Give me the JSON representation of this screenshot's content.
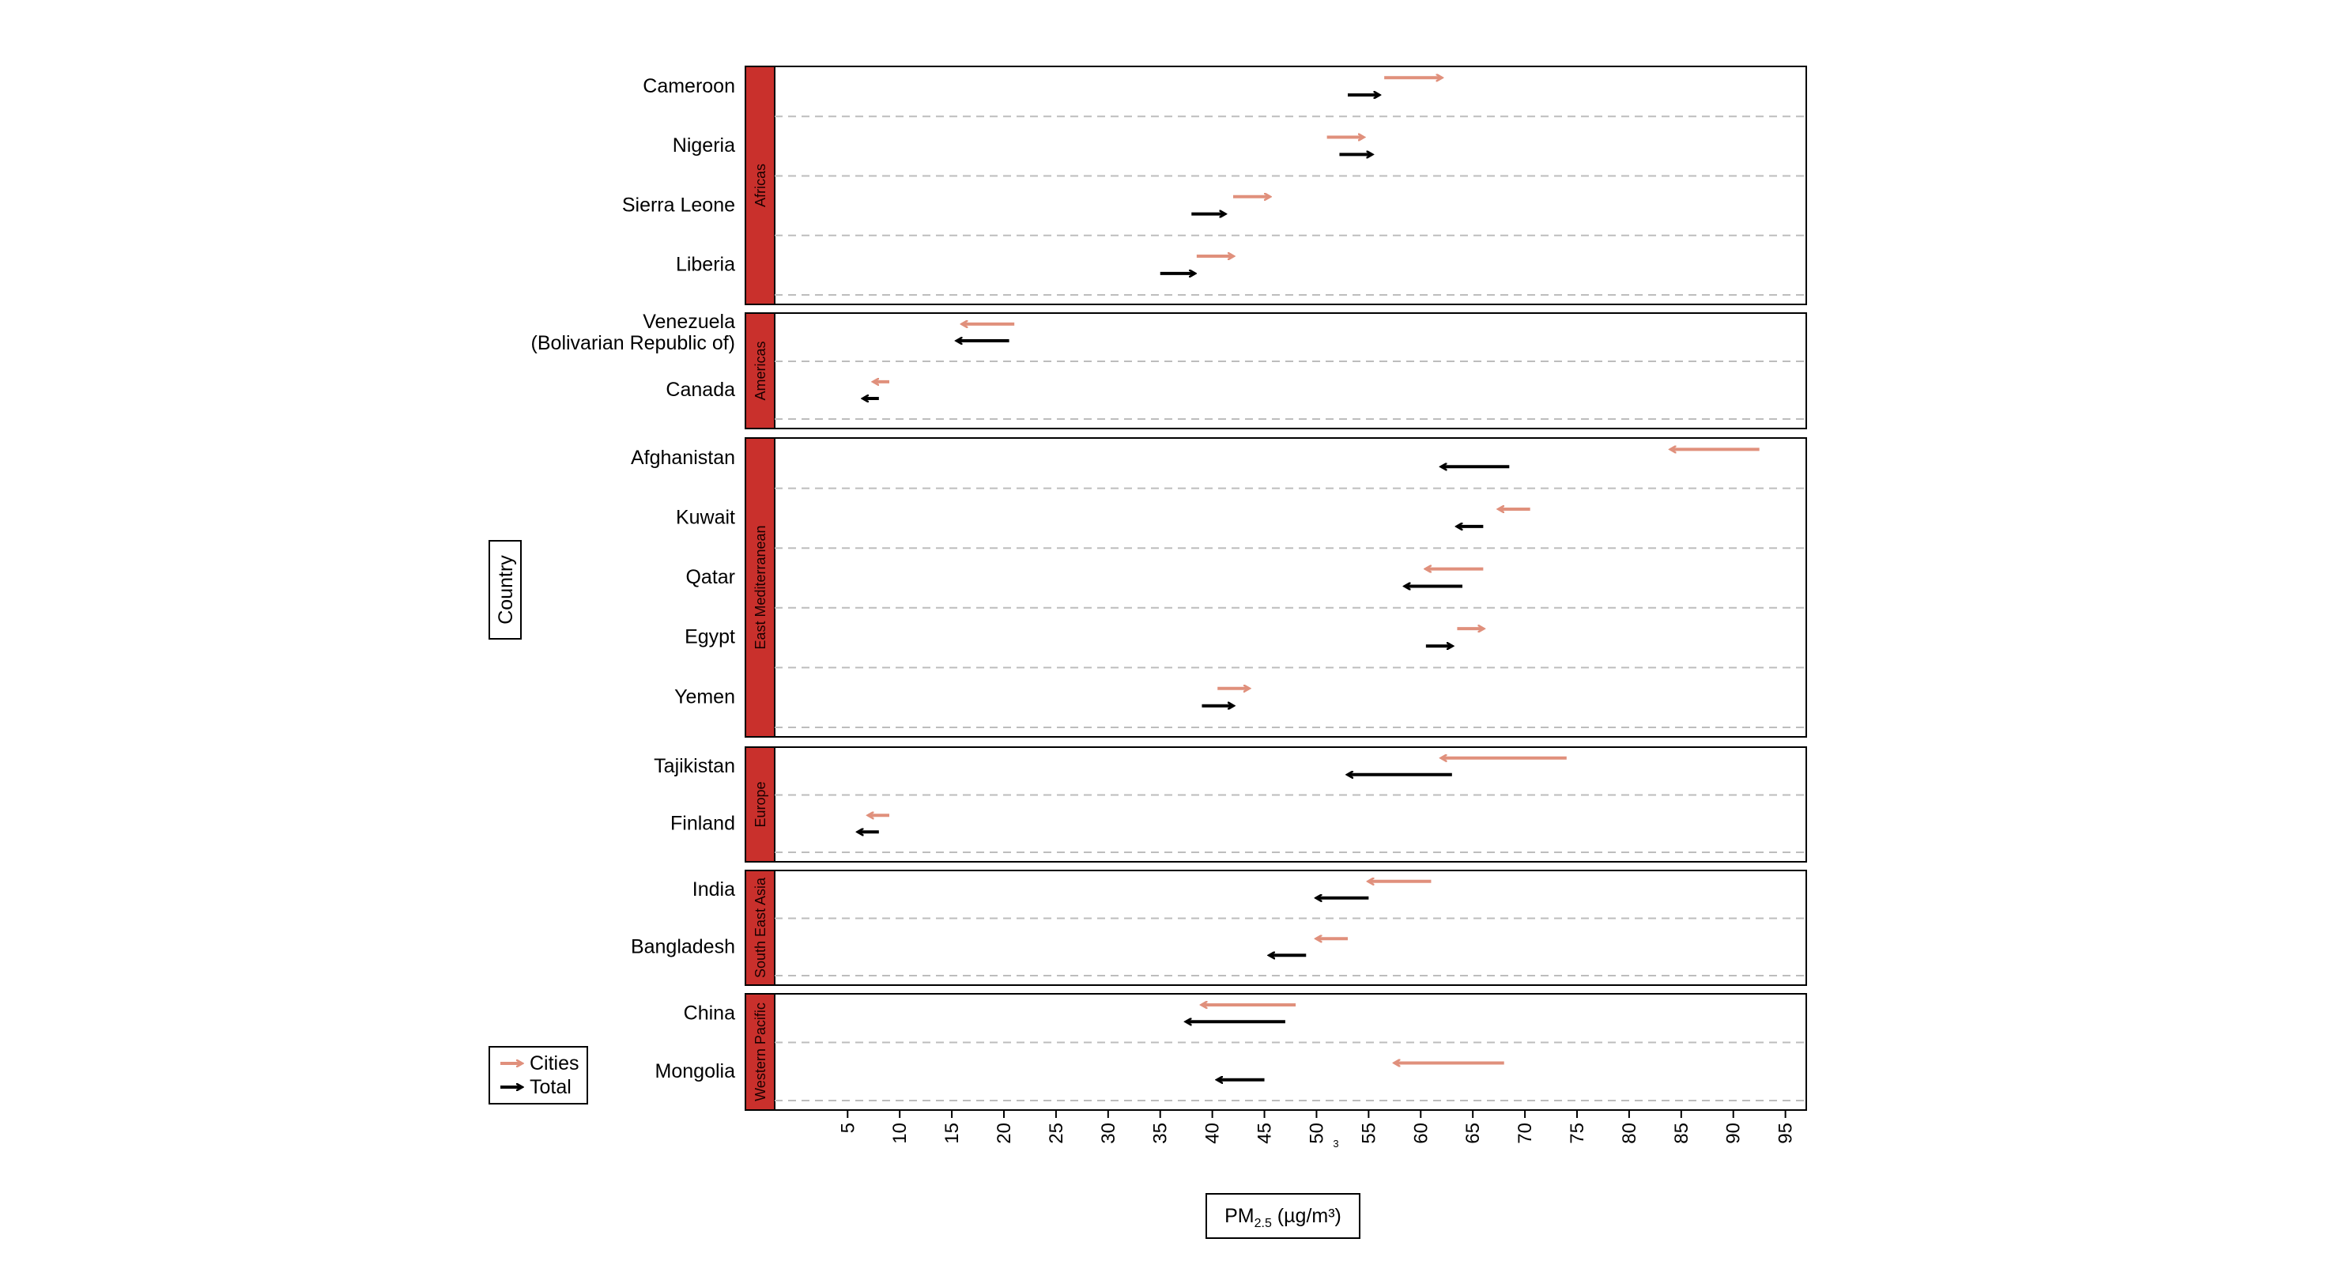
{
  "chart_data": {
    "type": "arrow",
    "ylabel": "Country",
    "xlabel_main": "PM",
    "xlabel_sub": "2.5",
    "xlabel_units": " (µg/m³)",
    "stray_tick_note": "3",
    "xlim": [
      -2,
      97
    ],
    "xticks": [
      5,
      10,
      15,
      20,
      25,
      30,
      35,
      40,
      45,
      50,
      55,
      60,
      65,
      70,
      75,
      80,
      85,
      90,
      95
    ],
    "legend": [
      {
        "name": "Cities",
        "color": "#e0907c"
      },
      {
        "name": "Total",
        "color": "#000000"
      }
    ],
    "strip_color": "#c9302c",
    "grid_color": "#bdbdbd",
    "panels": [
      {
        "region": "Africas",
        "countries": [
          {
            "name": "Cameroon",
            "cities": [
              56.5,
              62
            ],
            "total": [
              53,
              56
            ]
          },
          {
            "name": "Nigeria",
            "cities": [
              51,
              54.5
            ],
            "total": [
              52.2,
              55.3
            ]
          },
          {
            "name": "Sierra Leone",
            "cities": [
              42,
              45.5
            ],
            "total": [
              38,
              41.2
            ]
          },
          {
            "name": "Liberia",
            "cities": [
              38.5,
              42
            ],
            "total": [
              35,
              38.3
            ]
          }
        ]
      },
      {
        "region": "Americas",
        "countries": [
          {
            "name": "Venezuela\n(Bolivarian Republic of)",
            "cities": [
              21,
              16
            ],
            "total": [
              20.5,
              15.5
            ]
          },
          {
            "name": "Canada",
            "cities": [
              9,
              7.5
            ],
            "total": [
              8,
              6.5
            ]
          }
        ]
      },
      {
        "region": "East Mediterranean",
        "countries": [
          {
            "name": "Afghanistan",
            "cities": [
              92.5,
              84
            ],
            "total": [
              68.5,
              62
            ]
          },
          {
            "name": "Kuwait",
            "cities": [
              70.5,
              67.5
            ],
            "total": [
              66,
              63.5
            ]
          },
          {
            "name": "Qatar",
            "cities": [
              66,
              60.5
            ],
            "total": [
              64,
              58.5
            ]
          },
          {
            "name": "Egypt",
            "cities": [
              63.5,
              66
            ],
            "total": [
              60.5,
              63
            ]
          },
          {
            "name": "Yemen",
            "cities": [
              40.5,
              43.5
            ],
            "total": [
              39,
              42
            ]
          }
        ]
      },
      {
        "region": "Europe",
        "countries": [
          {
            "name": "Tajikistan",
            "cities": [
              74,
              62
            ],
            "total": [
              63,
              53
            ]
          },
          {
            "name": "Finland",
            "cities": [
              9,
              7
            ],
            "total": [
              8,
              6
            ]
          }
        ]
      },
      {
        "region": "South East Asia",
        "countries": [
          {
            "name": "India",
            "cities": [
              61,
              55
            ],
            "total": [
              55,
              50
            ]
          },
          {
            "name": "Bangladesh",
            "cities": [
              53,
              50
            ],
            "total": [
              49,
              45.5
            ]
          }
        ]
      },
      {
        "region": "Western Pacific",
        "countries": [
          {
            "name": "China",
            "cities": [
              48,
              39
            ],
            "total": [
              47,
              37.5
            ]
          },
          {
            "name": "Mongolia",
            "cities": [
              68,
              57.5
            ],
            "total": [
              45,
              40.5
            ]
          }
        ]
      }
    ]
  }
}
